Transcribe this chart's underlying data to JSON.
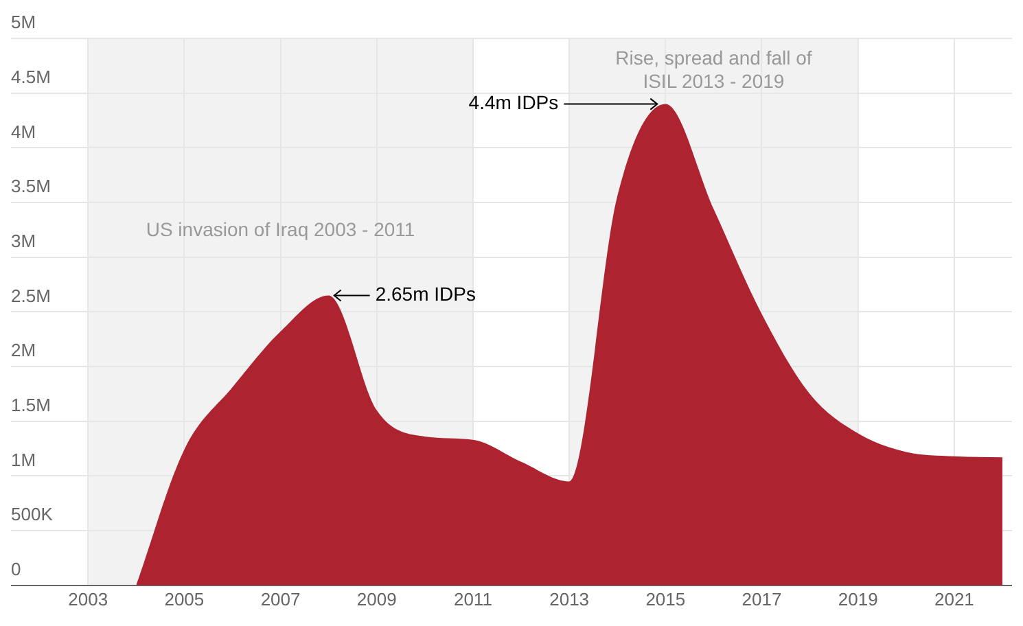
{
  "chart_data": {
    "type": "area",
    "x": [
      2004,
      2005,
      2006,
      2007,
      2008,
      2009,
      2010,
      2011,
      2012,
      2013,
      2014,
      2015,
      2016,
      2017,
      2018,
      2019,
      2020,
      2021,
      2022
    ],
    "series": [
      {
        "color": "#ae2330",
        "values": [
          0,
          1240000,
          1810000,
          2320000,
          2650000,
          1600000,
          1360000,
          1330000,
          1130000,
          950000,
          3560000,
          4400000,
          3440000,
          2480000,
          1750000,
          1390000,
          1220000,
          1180000,
          1170000
        ]
      }
    ],
    "xlim": [
      2001.4,
      2022.2
    ],
    "xticks": [
      2003,
      2005,
      2007,
      2009,
      2011,
      2013,
      2015,
      2017,
      2019,
      2021
    ],
    "ylim": [
      0,
      5000000
    ],
    "yticks": [
      0,
      {
        "value": 500000,
        "label": "500K"
      },
      {
        "value": 1000000,
        "label": "1M"
      },
      {
        "value": 1500000,
        "label": "1.5M"
      },
      {
        "value": 2000000,
        "label": "2M"
      },
      {
        "value": 2500000,
        "label": "2.5M"
      },
      {
        "value": 3000000,
        "label": "3M"
      },
      {
        "value": 3500000,
        "label": "3.5M"
      },
      {
        "value": 4000000,
        "label": "4M"
      },
      {
        "value": 4500000,
        "label": "4.5M"
      },
      {
        "value": 5000000,
        "label": "5M"
      }
    ],
    "bands": [
      {
        "axis": "x",
        "from": 2003,
        "to": 2011,
        "label": "US invasion of Iraq 2003 - 2011",
        "color": "#f2f2f2"
      },
      {
        "axis": "x",
        "from": 2013,
        "to": 2019,
        "label": "Rise, spread and fall of ISIL 2013 - 2019",
        "color": "#f2f2f2"
      }
    ],
    "annotations": [
      {
        "text": "2.65m IDPs",
        "x": 2008,
        "y": 2650000
      },
      {
        "text": "4.4m IDPs",
        "x": 2015,
        "y": 4400000
      }
    ],
    "grid": true,
    "legend": false
  }
}
